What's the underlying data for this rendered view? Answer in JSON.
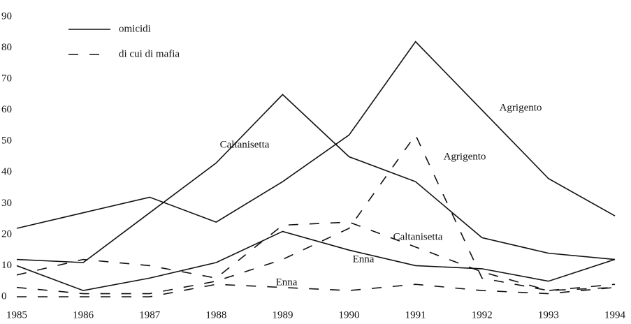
{
  "chart_data": {
    "type": "line",
    "x": [
      1985,
      1986,
      1987,
      1988,
      1989,
      1990,
      1991,
      1992,
      1993,
      1994
    ],
    "xlim": [
      1985,
      1994
    ],
    "xticks": [
      1985,
      1986,
      1987,
      1988,
      1989,
      1990,
      1991,
      1992,
      1993,
      1994
    ],
    "ylim": [
      0,
      90
    ],
    "yticks": [
      0,
      10,
      20,
      30,
      40,
      50,
      60,
      70,
      80,
      90
    ],
    "legend": [
      {
        "label": "omicidi",
        "dash": "solid"
      },
      {
        "label": "di cui di mafia",
        "dash": "dashed"
      }
    ],
    "series": [
      {
        "name": "Agrigento",
        "color": "#111111",
        "dash": "solid",
        "values": [
          22,
          27,
          32,
          24,
          37,
          52,
          82,
          60,
          38,
          26
        ]
      },
      {
        "name": "Agrigento",
        "color": "#111111",
        "dash": "dashed",
        "values": [
          3,
          1,
          1,
          5,
          12,
          22,
          52,
          6,
          2,
          3
        ]
      },
      {
        "name": "Caltanisetta",
        "color": "#111111",
        "dash": "solid",
        "values": [
          12,
          11,
          27,
          43,
          65,
          45,
          37,
          19,
          14,
          12
        ]
      },
      {
        "name": "Caltanisetta",
        "color": "#111111",
        "dash": "dashed",
        "values": [
          7,
          12,
          10,
          6,
          23,
          24,
          16,
          8,
          2,
          4
        ]
      },
      {
        "name": "Enna",
        "color": "#111111",
        "dash": "solid",
        "values": [
          10,
          2,
          6,
          11,
          21,
          15,
          10,
          9,
          5,
          12
        ]
      },
      {
        "name": "Enna",
        "color": "#111111",
        "dash": "dashed",
        "values": [
          0,
          0,
          0,
          4,
          3,
          2,
          4,
          2,
          1,
          3
        ]
      }
    ]
  }
}
